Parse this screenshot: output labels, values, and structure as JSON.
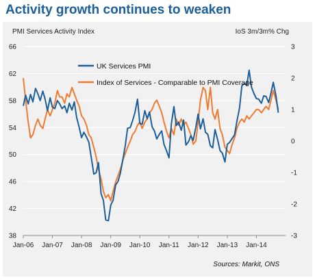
{
  "header": {
    "title": "Activity growth continues to weaken"
  },
  "chart_data": {
    "type": "line",
    "left_axis_label": "PMI Services Activity Index",
    "right_axis_label": "IoS 3m/3m% Chg",
    "source": "Sources: Markit, ONS",
    "x_ticks": [
      "Jan-06",
      "Jan-07",
      "Jan-08",
      "Jan-09",
      "Jan-10",
      "Jan-11",
      "Jan-12",
      "Jan-13",
      "Jan-14"
    ],
    "x_start_year": 2006,
    "left_ylim": [
      38,
      66
    ],
    "left_ticks": [
      38,
      42,
      46,
      50,
      54,
      58,
      62,
      66
    ],
    "right_ylim": [
      -3,
      3
    ],
    "right_ticks": [
      -3,
      -2,
      -1,
      0,
      1,
      2,
      3
    ],
    "series": [
      {
        "name": "UK Services PMI",
        "axis": "left",
        "color": "#1b5e9a",
        "points": [
          [
            2006.0,
            57.2
          ],
          [
            2006.08,
            58.8
          ],
          [
            2006.17,
            57.5
          ],
          [
            2006.25,
            58.9
          ],
          [
            2006.33,
            57.8
          ],
          [
            2006.42,
            59.8
          ],
          [
            2006.5,
            59.0
          ],
          [
            2006.58,
            58.0
          ],
          [
            2006.67,
            59.4
          ],
          [
            2006.75,
            58.2
          ],
          [
            2006.83,
            56.5
          ],
          [
            2006.92,
            58.4
          ],
          [
            2007.0,
            57.0
          ],
          [
            2007.08,
            56.8
          ],
          [
            2007.17,
            58.0
          ],
          [
            2007.25,
            57.5
          ],
          [
            2007.33,
            56.8
          ],
          [
            2007.42,
            57.2
          ],
          [
            2007.5,
            56.2
          ],
          [
            2007.58,
            57.6
          ],
          [
            2007.67,
            56.6
          ],
          [
            2007.75,
            57.8
          ],
          [
            2007.83,
            55.5
          ],
          [
            2007.92,
            54.0
          ],
          [
            2008.0,
            52.5
          ],
          [
            2008.08,
            53.3
          ],
          [
            2008.17,
            52.6
          ],
          [
            2008.25,
            51.8
          ],
          [
            2008.33,
            49.6
          ],
          [
            2008.42,
            47.1
          ],
          [
            2008.5,
            47.3
          ],
          [
            2008.58,
            48.8
          ],
          [
            2008.67,
            44.2
          ],
          [
            2008.75,
            43.2
          ],
          [
            2008.83,
            40.3
          ],
          [
            2008.92,
            40.2
          ],
          [
            2009.0,
            42.5
          ],
          [
            2009.08,
            43.2
          ],
          [
            2009.17,
            45.5
          ],
          [
            2009.25,
            46.0
          ],
          [
            2009.33,
            47.2
          ],
          [
            2009.42,
            49.3
          ],
          [
            2009.5,
            51.3
          ],
          [
            2009.58,
            53.9
          ],
          [
            2009.67,
            54.0
          ],
          [
            2009.75,
            55.0
          ],
          [
            2009.83,
            56.2
          ],
          [
            2009.92,
            58.2
          ],
          [
            2010.0,
            54.6
          ],
          [
            2010.08,
            54.5
          ],
          [
            2010.17,
            56.5
          ],
          [
            2010.25,
            55.3
          ],
          [
            2010.33,
            56.3
          ],
          [
            2010.42,
            54.1
          ],
          [
            2010.5,
            53.5
          ],
          [
            2010.58,
            52.3
          ],
          [
            2010.67,
            53.0
          ],
          [
            2010.75,
            53.5
          ],
          [
            2010.83,
            51.5
          ],
          [
            2010.92,
            50.5
          ],
          [
            2011.0,
            49.5
          ],
          [
            2011.08,
            54.5
          ],
          [
            2011.17,
            57.1
          ],
          [
            2011.25,
            54.3
          ],
          [
            2011.33,
            54.8
          ],
          [
            2011.42,
            53.6
          ],
          [
            2011.5,
            55.1
          ],
          [
            2011.58,
            51.4
          ],
          [
            2011.67,
            51.9
          ],
          [
            2011.75,
            52.8
          ],
          [
            2011.83,
            52.1
          ],
          [
            2011.92,
            54.0
          ],
          [
            2012.0,
            56.0
          ],
          [
            2012.08,
            53.8
          ],
          [
            2012.17,
            55.3
          ],
          [
            2012.25,
            53.3
          ],
          [
            2012.33,
            53.0
          ],
          [
            2012.42,
            51.3
          ],
          [
            2012.5,
            51.0
          ],
          [
            2012.58,
            53.7
          ],
          [
            2012.67,
            52.2
          ],
          [
            2012.75,
            50.6
          ],
          [
            2012.83,
            50.2
          ],
          [
            2012.92,
            48.9
          ],
          [
            2013.0,
            51.5
          ],
          [
            2013.08,
            51.8
          ],
          [
            2013.17,
            52.4
          ],
          [
            2013.25,
            52.9
          ],
          [
            2013.33,
            54.9
          ],
          [
            2013.42,
            56.9
          ],
          [
            2013.5,
            60.2
          ],
          [
            2013.58,
            60.5
          ],
          [
            2013.67,
            60.3
          ],
          [
            2013.75,
            62.5
          ],
          [
            2013.83,
            60.0
          ],
          [
            2013.92,
            59.0
          ],
          [
            2014.0,
            58.3
          ],
          [
            2014.08,
            58.2
          ],
          [
            2014.17,
            57.6
          ],
          [
            2014.25,
            58.7
          ],
          [
            2014.33,
            58.6
          ],
          [
            2014.42,
            57.7
          ],
          [
            2014.5,
            59.1
          ],
          [
            2014.58,
            60.7
          ],
          [
            2014.67,
            58.7
          ],
          [
            2014.75,
            56.2
          ]
        ]
      },
      {
        "name": "Index of Services - Comparable to PMI Coverage",
        "axis": "right",
        "color": "#f07a30",
        "points": [
          [
            2006.0,
            2.0
          ],
          [
            2006.08,
            1.3
          ],
          [
            2006.17,
            0.6
          ],
          [
            2006.25,
            0.1
          ],
          [
            2006.33,
            0.2
          ],
          [
            2006.42,
            0.5
          ],
          [
            2006.5,
            0.7
          ],
          [
            2006.58,
            0.5
          ],
          [
            2006.67,
            0.4
          ],
          [
            2006.75,
            0.7
          ],
          [
            2006.83,
            1.0
          ],
          [
            2006.92,
            0.8
          ],
          [
            2007.0,
            1.0
          ],
          [
            2007.08,
            1.2
          ],
          [
            2007.17,
            1.6
          ],
          [
            2007.25,
            1.4
          ],
          [
            2007.33,
            1.4
          ],
          [
            2007.42,
            1.2
          ],
          [
            2007.5,
            1.5
          ],
          [
            2007.58,
            1.4
          ],
          [
            2007.67,
            1.7
          ],
          [
            2007.75,
            1.5
          ],
          [
            2007.83,
            1.3
          ],
          [
            2007.92,
            1.1
          ],
          [
            2008.0,
            0.8
          ],
          [
            2008.08,
            0.7
          ],
          [
            2008.17,
            0.5
          ],
          [
            2008.25,
            0.2
          ],
          [
            2008.33,
            0.1
          ],
          [
            2008.42,
            -0.2
          ],
          [
            2008.5,
            -0.5
          ],
          [
            2008.58,
            -0.9
          ],
          [
            2008.67,
            -1.2
          ],
          [
            2008.75,
            -1.6
          ],
          [
            2008.83,
            -1.8
          ],
          [
            2008.92,
            -1.7
          ],
          [
            2009.0,
            -1.9
          ],
          [
            2009.08,
            -1.6
          ],
          [
            2009.17,
            -1.3
          ],
          [
            2009.25,
            -1.1
          ],
          [
            2009.33,
            -0.9
          ],
          [
            2009.42,
            -0.6
          ],
          [
            2009.5,
            -0.4
          ],
          [
            2009.58,
            -0.2
          ],
          [
            2009.67,
            0.0
          ],
          [
            2009.75,
            0.2
          ],
          [
            2009.83,
            0.3
          ],
          [
            2009.92,
            0.5
          ],
          [
            2010.0,
            0.6
          ],
          [
            2010.08,
            0.4
          ],
          [
            2010.17,
            0.6
          ],
          [
            2010.25,
            0.7
          ],
          [
            2010.33,
            0.9
          ],
          [
            2010.42,
            1.0
          ],
          [
            2010.5,
            1.2
          ],
          [
            2010.58,
            1.3
          ],
          [
            2010.67,
            1.1
          ],
          [
            2010.75,
            0.9
          ],
          [
            2010.83,
            0.6
          ],
          [
            2010.92,
            0.3
          ],
          [
            2011.0,
            0.1
          ],
          [
            2011.08,
            0.4
          ],
          [
            2011.17,
            0.2
          ],
          [
            2011.25,
            0.7
          ],
          [
            2011.33,
            0.5
          ],
          [
            2011.42,
            0.7
          ],
          [
            2011.5,
            0.5
          ],
          [
            2011.58,
            0.6
          ],
          [
            2011.67,
            0.4
          ],
          [
            2011.75,
            0.2
          ],
          [
            2011.83,
            -0.1
          ],
          [
            2011.92,
            0.0
          ],
          [
            2012.0,
            0.6
          ],
          [
            2012.08,
            1.3
          ],
          [
            2012.17,
            1.7
          ],
          [
            2012.25,
            1.6
          ],
          [
            2012.33,
            1.0
          ],
          [
            2012.42,
            1.7
          ],
          [
            2012.5,
            0.9
          ],
          [
            2012.58,
            0.7
          ],
          [
            2012.67,
            1.0
          ],
          [
            2012.75,
            0.4
          ],
          [
            2012.83,
            0.2
          ],
          [
            2012.92,
            -0.2
          ],
          [
            2013.0,
            -0.3
          ],
          [
            2013.08,
            -0.4
          ],
          [
            2013.17,
            -0.1
          ],
          [
            2013.25,
            0.1
          ],
          [
            2013.33,
            0.4
          ],
          [
            2013.42,
            0.6
          ],
          [
            2013.5,
            0.7
          ],
          [
            2013.58,
            0.6
          ],
          [
            2013.67,
            0.8
          ],
          [
            2013.75,
            0.7
          ],
          [
            2013.83,
            0.8
          ],
          [
            2013.92,
            0.9
          ],
          [
            2014.0,
            1.0
          ],
          [
            2014.08,
            1.0
          ],
          [
            2014.17,
            0.9
          ],
          [
            2014.25,
            1.0
          ],
          [
            2014.33,
            1.1
          ],
          [
            2014.42,
            1.0
          ],
          [
            2014.5,
            1.3
          ],
          [
            2014.58,
            1.6
          ],
          [
            2014.67,
            1.3
          ],
          [
            2014.75,
            1.0
          ]
        ]
      }
    ]
  }
}
